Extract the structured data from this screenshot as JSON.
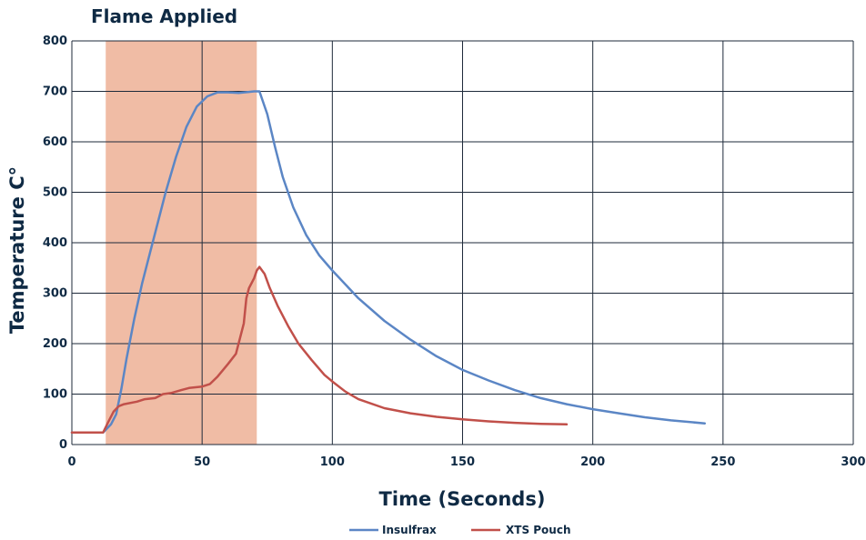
{
  "chart_data": {
    "type": "line",
    "xlabel": "Time (Seconds)",
    "ylabel": "Temperature C°",
    "xlim": [
      0,
      300
    ],
    "ylim": [
      0,
      800
    ],
    "x_ticks": [
      0,
      50,
      100,
      150,
      200,
      250,
      300
    ],
    "y_ticks": [
      0,
      100,
      200,
      300,
      400,
      500,
      600,
      700,
      800
    ],
    "grid": true,
    "legend_position": "bottom-center",
    "band": {
      "label": "Flame Applied",
      "x_start": 13,
      "x_end": 71,
      "color": "#f0bca5"
    },
    "series": [
      {
        "name": "Insulfrax",
        "color": "#5b86c5",
        "points": [
          [
            0,
            24
          ],
          [
            10,
            24
          ],
          [
            12,
            24
          ],
          [
            15,
            40
          ],
          [
            17,
            60
          ],
          [
            19,
            110
          ],
          [
            21,
            170
          ],
          [
            24,
            250
          ],
          [
            27,
            320
          ],
          [
            30,
            380
          ],
          [
            33,
            440
          ],
          [
            36,
            500
          ],
          [
            40,
            570
          ],
          [
            44,
            630
          ],
          [
            48,
            670
          ],
          [
            52,
            690
          ],
          [
            56,
            698
          ],
          [
            60,
            698
          ],
          [
            64,
            697
          ],
          [
            68,
            699
          ],
          [
            70,
            700
          ],
          [
            72,
            700
          ],
          [
            75,
            655
          ],
          [
            78,
            590
          ],
          [
            81,
            530
          ],
          [
            85,
            470
          ],
          [
            90,
            415
          ],
          [
            95,
            375
          ],
          [
            100,
            345
          ],
          [
            110,
            290
          ],
          [
            120,
            245
          ],
          [
            130,
            208
          ],
          [
            140,
            175
          ],
          [
            150,
            148
          ],
          [
            160,
            127
          ],
          [
            170,
            108
          ],
          [
            180,
            92
          ],
          [
            190,
            80
          ],
          [
            200,
            70
          ],
          [
            210,
            62
          ],
          [
            220,
            54
          ],
          [
            230,
            48
          ],
          [
            243,
            42
          ]
        ]
      },
      {
        "name": "XTS Pouch",
        "color": "#c1504a",
        "points": [
          [
            0,
            24
          ],
          [
            10,
            24
          ],
          [
            12,
            24
          ],
          [
            14,
            45
          ],
          [
            16,
            65
          ],
          [
            18,
            76
          ],
          [
            20,
            80
          ],
          [
            25,
            85
          ],
          [
            28,
            90
          ],
          [
            32,
            92
          ],
          [
            35,
            100
          ],
          [
            38,
            102
          ],
          [
            42,
            108
          ],
          [
            45,
            112
          ],
          [
            50,
            115
          ],
          [
            53,
            120
          ],
          [
            56,
            135
          ],
          [
            60,
            160
          ],
          [
            63,
            180
          ],
          [
            66,
            240
          ],
          [
            67,
            290
          ],
          [
            68,
            310
          ],
          [
            70,
            330
          ],
          [
            71,
            345
          ],
          [
            72,
            352
          ],
          [
            74,
            338
          ],
          [
            76,
            310
          ],
          [
            79,
            275
          ],
          [
            83,
            235
          ],
          [
            87,
            200
          ],
          [
            92,
            168
          ],
          [
            97,
            138
          ],
          [
            100,
            125
          ],
          [
            105,
            105
          ],
          [
            110,
            90
          ],
          [
            120,
            72
          ],
          [
            130,
            62
          ],
          [
            140,
            55
          ],
          [
            150,
            50
          ],
          [
            160,
            46
          ],
          [
            170,
            43
          ],
          [
            180,
            41
          ],
          [
            190,
            40
          ]
        ]
      }
    ]
  }
}
